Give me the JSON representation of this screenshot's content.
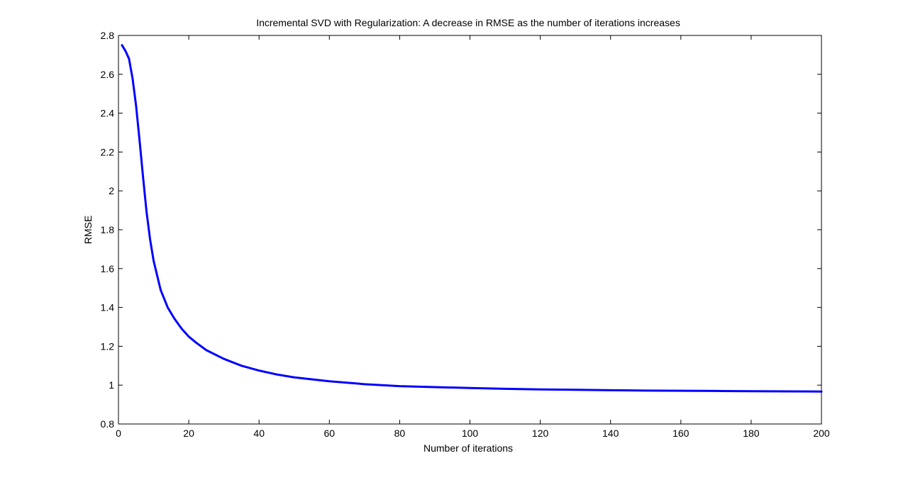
{
  "chart_data": {
    "type": "line",
    "title": "Incremental SVD with Regularization: A decrease in RMSE as the number of iterations increases",
    "xlabel": "Number of iterations",
    "ylabel": "RMSE",
    "xlim": [
      0,
      200
    ],
    "ylim": [
      0.8,
      2.8
    ],
    "xticks": [
      0,
      20,
      40,
      60,
      80,
      100,
      120,
      140,
      160,
      180,
      200
    ],
    "yticks": [
      0.8,
      1,
      1.2,
      1.4,
      1.6,
      1.8,
      2,
      2.2,
      2.4,
      2.6,
      2.8
    ],
    "grid": false,
    "box": true,
    "series": [
      {
        "color": "#0000ff",
        "x": [
          1,
          2,
          3,
          4,
          5,
          6,
          7,
          8,
          9,
          10,
          12,
          14,
          16,
          18,
          20,
          22,
          25,
          30,
          35,
          40,
          45,
          50,
          60,
          70,
          80,
          90,
          100,
          110,
          120,
          130,
          140,
          150,
          160,
          170,
          180,
          190,
          200
        ],
        "y": [
          2.75,
          2.72,
          2.68,
          2.58,
          2.44,
          2.26,
          2.07,
          1.89,
          1.75,
          1.64,
          1.49,
          1.4,
          1.34,
          1.29,
          1.25,
          1.22,
          1.18,
          1.135,
          1.1,
          1.075,
          1.055,
          1.04,
          1.02,
          1.005,
          0.995,
          0.99,
          0.985,
          0.981,
          0.978,
          0.976,
          0.974,
          0.972,
          0.971,
          0.97,
          0.969,
          0.968,
          0.967
        ]
      }
    ]
  }
}
